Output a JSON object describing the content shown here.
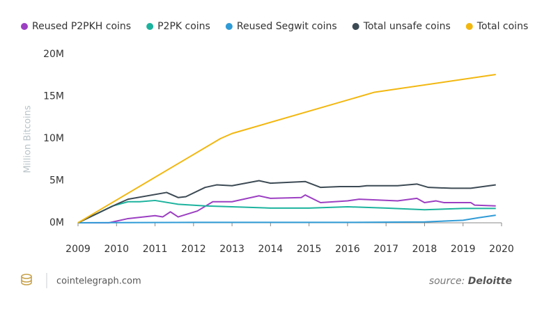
{
  "chart_data": {
    "type": "line",
    "y_label": "Million Bitcoins",
    "ylim": [
      0,
      20
    ],
    "yticks": [
      {
        "value": 0,
        "label": "0M"
      },
      {
        "value": 5,
        "label": "5M"
      },
      {
        "value": 10,
        "label": "10M"
      },
      {
        "value": 15,
        "label": "15M"
      },
      {
        "value": 20,
        "label": "20M"
      }
    ],
    "xlim": [
      2009,
      2020
    ],
    "xticks": [
      2009,
      2010,
      2011,
      2012,
      2013,
      2014,
      2015,
      2016,
      2017,
      2018,
      2019,
      2020
    ],
    "grid": false,
    "legend": "top",
    "series": [
      {
        "name": "Reused P2PKH coins",
        "color": "#9c3fc2",
        "x": [
          2009,
          2009.8,
          2010.3,
          2011,
          2011.2,
          2011.4,
          2011.6,
          2012.1,
          2012.5,
          2013,
          2013.7,
          2014,
          2014.8,
          2014.9,
          2015.3,
          2016,
          2016.3,
          2017.3,
          2017.8,
          2018,
          2018.3,
          2018.5,
          2019.2,
          2019.3,
          2019.85
        ],
        "values": [
          0,
          0,
          0.5,
          0.85,
          0.7,
          1.3,
          0.7,
          1.4,
          2.5,
          2.5,
          3.2,
          2.9,
          3.0,
          3.3,
          2.4,
          2.6,
          2.8,
          2.6,
          2.9,
          2.4,
          2.6,
          2.4,
          2.4,
          2.1,
          2.0
        ]
      },
      {
        "name": "P2PK coins",
        "color": "#1cb39e",
        "x": [
          2009,
          2009.9,
          2010.3,
          2010.6,
          2011,
          2011.6,
          2012.3,
          2013,
          2014,
          2015,
          2016,
          2017,
          2018,
          2019,
          2019.85
        ],
        "values": [
          0,
          2.0,
          2.5,
          2.5,
          2.65,
          2.2,
          2.0,
          1.9,
          1.75,
          1.75,
          1.9,
          1.75,
          1.55,
          1.7,
          1.7
        ]
      },
      {
        "name": "Reused Segwit coins",
        "color": "#2f9bd6",
        "x": [
          2009,
          2010,
          2012,
          2014,
          2016,
          2018,
          2019,
          2019.4,
          2019.85
        ],
        "values": [
          0,
          0.02,
          0.05,
          0.05,
          0.05,
          0.1,
          0.3,
          0.6,
          0.9
        ]
      },
      {
        "name": "Total unsafe coins",
        "color": "#3c4a54",
        "x": [
          2009,
          2010,
          2010.3,
          2011.3,
          2011.6,
          2011.8,
          2012.3,
          2012.6,
          2013,
          2013.7,
          2014,
          2014.9,
          2015.3,
          2015.8,
          2016.3,
          2016.5,
          2017.3,
          2017.8,
          2018.1,
          2018.7,
          2019.2,
          2019.85
        ],
        "values": [
          0,
          2.2,
          2.8,
          3.6,
          3.0,
          3.1,
          4.2,
          4.5,
          4.4,
          5.0,
          4.7,
          4.9,
          4.2,
          4.3,
          4.3,
          4.4,
          4.4,
          4.6,
          4.2,
          4.1,
          4.1,
          4.5
        ]
      },
      {
        "name": "Total coins",
        "color": "#f2b70f",
        "x": [
          2009,
          2012.7,
          2013,
          2016.7,
          2019.85
        ],
        "values": [
          0,
          10,
          10.6,
          15.5,
          17.6
        ]
      }
    ]
  },
  "footer": {
    "site": "cointelegraph.com",
    "source_prefix": "source:",
    "source": "Deloitte"
  }
}
